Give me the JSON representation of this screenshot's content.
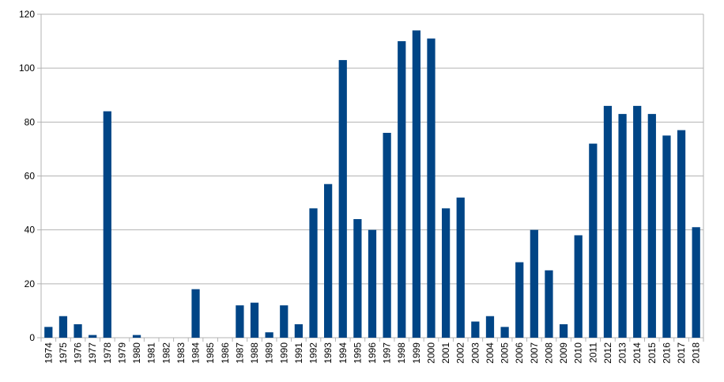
{
  "chart_data": {
    "type": "bar",
    "categories": [
      "1974",
      "1975",
      "1976",
      "1977",
      "1978",
      "1979",
      "1980",
      "1981",
      "1982",
      "1983",
      "1984",
      "1985",
      "1986",
      "1987",
      "1988",
      "1989",
      "1990",
      "1991",
      "1992",
      "1993",
      "1994",
      "1995",
      "1996",
      "1997",
      "1998",
      "1999",
      "2000",
      "2001",
      "2002",
      "2003",
      "2004",
      "2005",
      "2006",
      "2007",
      "2008",
      "2009",
      "2010",
      "2011",
      "2012",
      "2013",
      "2014",
      "2015",
      "2016",
      "2017",
      "2018"
    ],
    "values": [
      4,
      8,
      5,
      1,
      84,
      0,
      1,
      0,
      0,
      0,
      18,
      0,
      0,
      12,
      13,
      2,
      12,
      5,
      48,
      57,
      103,
      44,
      40,
      76,
      110,
      114,
      111,
      48,
      52,
      6,
      8,
      4,
      28,
      40,
      25,
      5,
      38,
      72,
      86,
      83,
      86,
      83,
      75,
      77,
      41
    ],
    "ylim": [
      0,
      120
    ],
    "yticks": [
      0,
      20,
      40,
      60,
      80,
      100,
      120
    ],
    "grid": true,
    "bar_color": "#004586",
    "grid_color": "#b3b3b3"
  }
}
